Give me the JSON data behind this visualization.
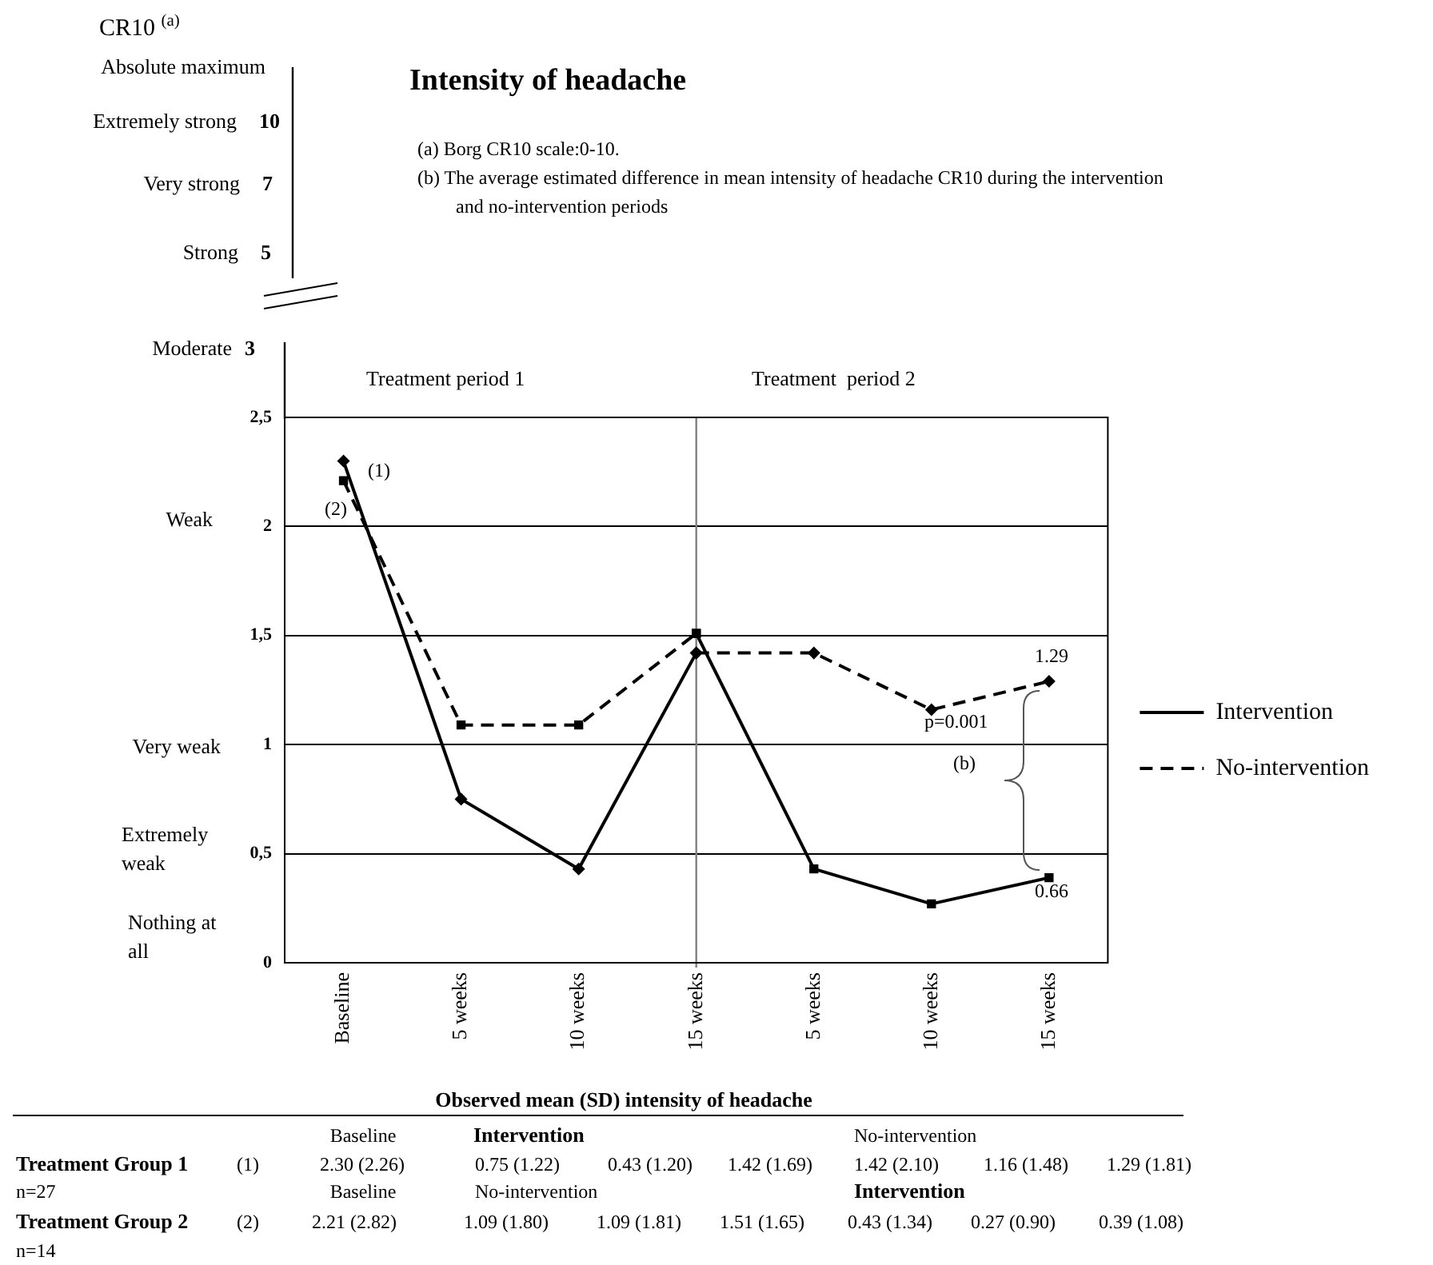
{
  "chart_data": {
    "type": "line",
    "title": "Intensity of headache",
    "xlabel": "Observed mean (SD) intensity of headache",
    "categories": [
      "Baseline",
      "5 weeks",
      "10 weeks",
      "15 weeks",
      "5 weeks",
      "10 weeks",
      "15 weeks"
    ],
    "series": [
      {
        "name": "Intervention",
        "color": "#000000",
        "line_style": "solid",
        "marker": "diamond",
        "values": [
          2.3,
          0.75,
          0.43,
          1.42,
          null,
          null,
          null
        ]
      },
      {
        "name": "No-intervention",
        "color": "#000000",
        "line_style": "dashed",
        "marker": "diamond",
        "values": [
          null,
          null,
          null,
          1.42,
          1.42,
          1.16,
          1.29
        ]
      },
      {
        "color": "#000000",
        "line_style": "dashed",
        "marker": "square",
        "values": [
          2.21,
          1.09,
          1.09,
          1.51,
          null,
          null,
          null
        ]
      },
      {
        "color": "#000000",
        "line_style": "solid",
        "marker": "square",
        "values": [
          null,
          null,
          null,
          1.51,
          0.43,
          0.27,
          0.39
        ]
      }
    ],
    "ylim": [
      0,
      2.5
    ],
    "yticks": [
      0,
      {
        "value": 0.5,
        "label": "0,5"
      },
      1,
      {
        "value": 1.5,
        "label": "1,5"
      },
      2,
      {
        "value": 2.5,
        "label": "2,5"
      }
    ],
    "grid": "y",
    "legend": "right",
    "ref_lines": [
      {
        "axis": "x",
        "value": "15 weeks",
        "color": "#808080"
      }
    ],
    "annotations": [
      "CR10 $^{(a)}$",
      "Absolute maximum",
      "Extremely strong",
      "10",
      "Very strong",
      "7",
      "Strong",
      "5",
      "Moderate",
      "3",
      "Weak",
      "Very weak",
      "Extremely weak",
      "Nothing at all",
      "(a) Borg CR10 scale:0-10.",
      "(b) The average estimated difference in mean intensity of headache CR10 during the intervention and no-intervention periods",
      "Treatment period 1",
      "Treatment  period 2",
      "(1)",
      "(2)",
      {
        "text": "1.29",
        "y": 1.29
      },
      "p=0.001",
      "(b)",
      {
        "text": "0.66",
        "y": 0.39
      },
      "Baseline",
      "Intervention",
      "No-intervention",
      "Treatment Group 1",
      "(1)",
      "2.30 (2.26)",
      "0.75 (1.22)",
      "0.43 (1.20)",
      "1.42 (1.69)",
      "1.42 (2.10)",
      "1.16 (1.48)",
      "1.29 (1.81)",
      "n=27",
      "Baseline",
      "No-intervention",
      "Intervention",
      "Treatment Group 2",
      "(2)",
      "2.21 (2.82)",
      "1.09 (1.80)",
      "1.09 (1.81)",
      "1.51 (1.65)",
      "0.43 (1.34)",
      "0.27 (0.90)",
      "0.39 (1.08)",
      "n=14"
    ]
  }
}
